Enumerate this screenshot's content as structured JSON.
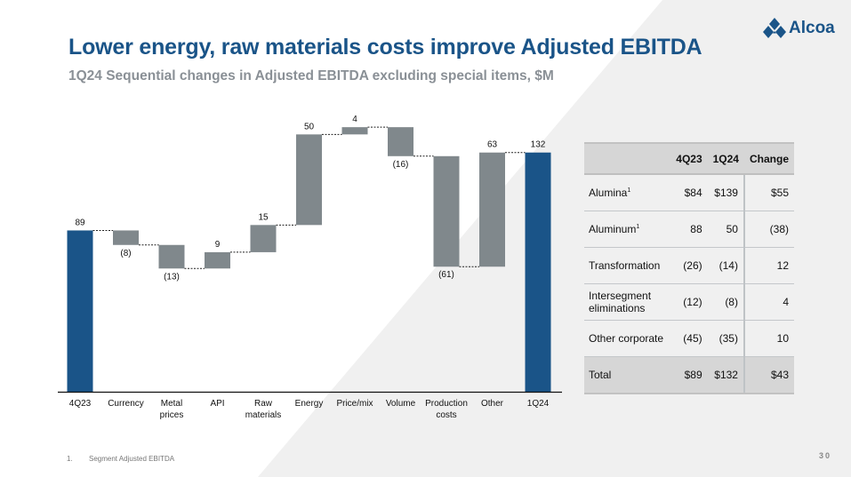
{
  "header": {
    "title": "Lower energy, raw materials costs improve Adjusted EBITDA",
    "subtitle": "1Q24 Sequential changes in Adjusted EBITDA excluding special items, $M"
  },
  "logo": {
    "icon": "alcoa-diamond-logo-icon",
    "text": "Alcoa"
  },
  "colors": {
    "brand_blue": "#1a5488",
    "bar_gray": "#80888c",
    "subtitle_gray": "#8a9096",
    "bg_shape": "#f0f0f0"
  },
  "chart_data": {
    "type": "bar",
    "subtype": "waterfall",
    "title": "1Q24 Sequential changes in Adjusted EBITDA excluding special items, $M",
    "xlabel": "",
    "ylabel": "",
    "categories": [
      "4Q23",
      "Currency",
      "Metal prices",
      "API",
      "Raw materials",
      "Energy",
      "Price/mix",
      "Volume",
      "Production costs",
      "Other",
      "1Q24"
    ],
    "category_lines": [
      [
        "4Q23"
      ],
      [
        "Currency"
      ],
      [
        "Metal",
        "prices"
      ],
      [
        "API"
      ],
      [
        "Raw",
        "materials"
      ],
      [
        "Energy"
      ],
      [
        "Price/mix"
      ],
      [
        "Volume"
      ],
      [
        "Production",
        "costs"
      ],
      [
        "Other"
      ],
      [
        "1Q24"
      ]
    ],
    "values": [
      89,
      -8,
      -13,
      9,
      15,
      50,
      4,
      -16,
      -61,
      63,
      132
    ],
    "kinds": [
      "total",
      "delta",
      "delta",
      "delta",
      "delta",
      "delta",
      "delta",
      "delta",
      "delta",
      "delta",
      "total"
    ],
    "data_labels": [
      "89",
      "(8)",
      "(13)",
      "9",
      "15",
      "50",
      "4",
      "(16)",
      "(61)",
      "63",
      "132"
    ],
    "ylim": [
      0,
      140
    ],
    "grid": false,
    "legend": "none"
  },
  "table": {
    "headers": [
      "",
      "4Q23",
      "1Q24",
      "Change"
    ],
    "rows": [
      {
        "label": "Alumina",
        "sup": "1",
        "q4": "$84",
        "q1": "$139",
        "change": "$55"
      },
      {
        "label": "Aluminum",
        "sup": "1",
        "q4": "88",
        "q1": "50",
        "change": "(38)"
      },
      {
        "label": "Transformation",
        "sup": "",
        "q4": "(26)",
        "q1": "(14)",
        "change": "12"
      },
      {
        "label": "Intersegment eliminations",
        "sup": "",
        "q4": "(12)",
        "q1": "(8)",
        "change": "4"
      },
      {
        "label": "Other corporate",
        "sup": "",
        "q4": "(45)",
        "q1": "(35)",
        "change": "10"
      }
    ],
    "total": {
      "label": "Total",
      "q4": "$89",
      "q1": "$132",
      "change": "$43"
    }
  },
  "footnote": {
    "number": "1.",
    "text": "Segment Adjusted EBITDA"
  },
  "page_number": "30"
}
